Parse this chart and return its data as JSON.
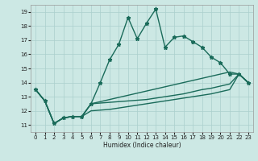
{
  "xlabel": "Humidex (Indice chaleur)",
  "bg_color": "#cce8e4",
  "grid_color": "#aacfcc",
  "line_color": "#1a6b5a",
  "line1_y": [
    13.5,
    12.7,
    11.1,
    11.5,
    11.6,
    11.6,
    12.5,
    14.0,
    15.6,
    16.7,
    18.6,
    17.1,
    18.2,
    19.2,
    16.5,
    17.2,
    17.3,
    16.9,
    16.5,
    15.8,
    15.4,
    14.6,
    14.6,
    14.0
  ],
  "line2_y": [
    13.5,
    12.7,
    11.1,
    11.5,
    11.6,
    11.6,
    12.5,
    12.65,
    12.8,
    12.95,
    13.1,
    13.25,
    13.4,
    13.55,
    13.7,
    13.85,
    14.0,
    14.15,
    14.3,
    14.45,
    14.6,
    14.75,
    14.6,
    14.0
  ],
  "line3_y": [
    13.5,
    12.7,
    11.1,
    11.5,
    11.6,
    11.6,
    12.5,
    12.55,
    12.6,
    12.65,
    12.7,
    12.75,
    12.8,
    12.9,
    13.0,
    13.1,
    13.2,
    13.35,
    13.5,
    13.6,
    13.75,
    13.9,
    14.6,
    14.0
  ],
  "line4_y": [
    13.5,
    12.7,
    11.1,
    11.5,
    11.6,
    11.6,
    12.0,
    12.05,
    12.1,
    12.2,
    12.3,
    12.4,
    12.5,
    12.6,
    12.7,
    12.8,
    12.9,
    13.0,
    13.1,
    13.2,
    13.35,
    13.5,
    14.6,
    14.0
  ],
  "xlim": [
    -0.5,
    23.5
  ],
  "ylim": [
    10.5,
    19.5
  ],
  "yticks": [
    11,
    12,
    13,
    14,
    15,
    16,
    17,
    18,
    19
  ],
  "xticks": [
    0,
    1,
    2,
    3,
    4,
    5,
    6,
    7,
    8,
    9,
    10,
    11,
    12,
    13,
    14,
    15,
    16,
    17,
    18,
    19,
    20,
    21,
    22,
    23
  ]
}
